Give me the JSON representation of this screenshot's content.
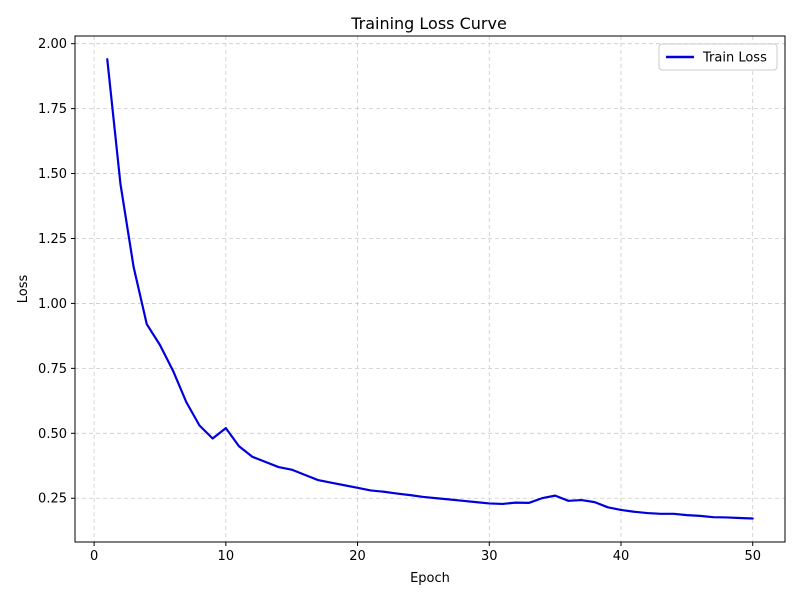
{
  "chart_data": {
    "type": "line",
    "title": "Training Loss Curve",
    "xlabel": "Epoch",
    "ylabel": "Loss",
    "xlim": [
      -1.45,
      52.45
    ],
    "ylim": [
      0.0815,
      2.0295
    ],
    "xticks": [
      0,
      10,
      20,
      30,
      40,
      50
    ],
    "yticks": [
      0.25,
      0.5,
      0.75,
      1.0,
      1.25,
      1.5,
      1.75,
      2.0
    ],
    "xtick_labels": [
      "0",
      "10",
      "20",
      "30",
      "40",
      "50"
    ],
    "ytick_labels": [
      "0.25",
      "0.50",
      "0.75",
      "1.00",
      "1.25",
      "1.50",
      "1.75",
      "2.00"
    ],
    "grid": true,
    "legend_position": "top-right",
    "series": [
      {
        "name": "Train Loss",
        "color": "#0000dd",
        "x": [
          1,
          2,
          3,
          4,
          5,
          6,
          7,
          8,
          9,
          10,
          11,
          12,
          13,
          14,
          15,
          16,
          17,
          18,
          19,
          20,
          21,
          22,
          23,
          24,
          25,
          26,
          27,
          28,
          29,
          30,
          31,
          32,
          33,
          34,
          35,
          36,
          37,
          38,
          39,
          40,
          41,
          42,
          43,
          44,
          45,
          46,
          47,
          48,
          49,
          50
        ],
        "y": [
          1.94,
          1.46,
          1.14,
          0.92,
          0.84,
          0.74,
          0.62,
          0.53,
          0.48,
          0.52,
          0.45,
          0.41,
          0.39,
          0.37,
          0.36,
          0.34,
          0.32,
          0.31,
          0.3,
          0.29,
          0.28,
          0.275,
          0.268,
          0.262,
          0.255,
          0.25,
          0.245,
          0.24,
          0.235,
          0.23,
          0.228,
          0.233,
          0.232,
          0.25,
          0.26,
          0.24,
          0.243,
          0.235,
          0.215,
          0.205,
          0.198,
          0.193,
          0.19,
          0.19,
          0.185,
          0.182,
          0.177,
          0.176,
          0.174,
          0.172
        ]
      }
    ]
  }
}
